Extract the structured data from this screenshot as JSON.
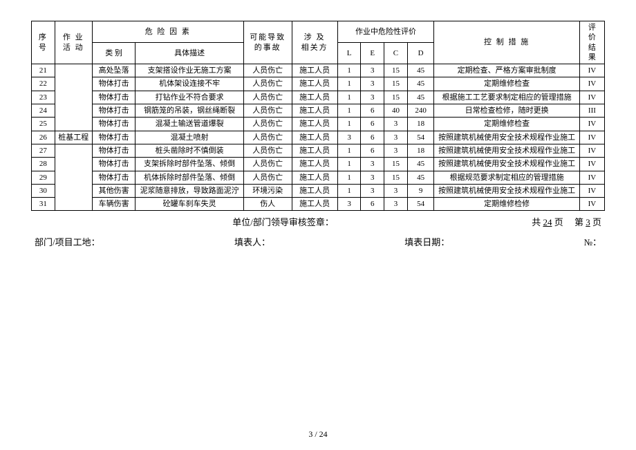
{
  "header": {
    "seq": "序\n号",
    "activity": "作 业\n活 动",
    "risk_factor": "危  险  因  素",
    "category": "类  别",
    "description": "具体描述",
    "accident": "可能导致\n的事故",
    "related": "涉  及\n相关方",
    "risk_eval": "作业中危险性评价",
    "L": "L",
    "E": "E",
    "C": "C",
    "D": "D",
    "controls": "控  制  措  施",
    "result": "评\n价\n结\n果"
  },
  "activity_merged": "桩基工程",
  "rows": [
    {
      "n": "21",
      "cat": "高处坠落",
      "desc": "支架搭设作业无施工方案",
      "acc": "人员伤亡",
      "rel": "施工人员",
      "L": "1",
      "E": "3",
      "C": "15",
      "D": "45",
      "ctrl": "定期检查、严格方案审批制度",
      "res": "IV"
    },
    {
      "n": "22",
      "cat": "物体打击",
      "desc": "机体架设连接不牢",
      "acc": "人员伤亡",
      "rel": "施工人员",
      "L": "1",
      "E": "3",
      "C": "15",
      "D": "45",
      "ctrl": "定期维修检查",
      "res": "IV"
    },
    {
      "n": "23",
      "cat": "物体打击",
      "desc": "打钻作业不符合要求",
      "acc": "人员伤亡",
      "rel": "施工人员",
      "L": "1",
      "E": "3",
      "C": "15",
      "D": "45",
      "ctrl": "根据施工工艺要求制定相应的管理措施",
      "res": "IV"
    },
    {
      "n": "24",
      "cat": "物体打击",
      "desc": "钢筋笼的吊装，钢丝绳断裂",
      "acc": "人员伤亡",
      "rel": "施工人员",
      "L": "1",
      "E": "6",
      "C": "40",
      "D": "240",
      "ctrl": "日常检查检修，随时更换",
      "res": "III"
    },
    {
      "n": "25",
      "cat": "物体打击",
      "desc": "混凝土输送管道爆裂",
      "acc": "人员伤亡",
      "rel": "施工人员",
      "L": "1",
      "E": "6",
      "C": "3",
      "D": "18",
      "ctrl": "定期维修检查",
      "res": "IV"
    },
    {
      "n": "26",
      "cat": "物体打击",
      "desc": "混凝土喷射",
      "acc": "人员伤亡",
      "rel": "施工人员",
      "L": "3",
      "E": "6",
      "C": "3",
      "D": "54",
      "ctrl": "按照建筑机械使用安全技术规程作业施工",
      "res": "IV"
    },
    {
      "n": "27",
      "cat": "物体打击",
      "desc": "桩头凿除时不慎倒装",
      "acc": "人员伤亡",
      "rel": "施工人员",
      "L": "1",
      "E": "6",
      "C": "3",
      "D": "18",
      "ctrl": "按照建筑机械使用安全技术规程作业施工",
      "res": "IV"
    },
    {
      "n": "28",
      "cat": "物体打击",
      "desc": "支架拆除时部件坠落、倾倒",
      "acc": "人员伤亡",
      "rel": "施工人员",
      "L": "1",
      "E": "3",
      "C": "15",
      "D": "45",
      "ctrl": "按照建筑机械使用安全技术规程作业施工",
      "res": "IV"
    },
    {
      "n": "29",
      "cat": "物体打击",
      "desc": "机体拆除时部件坠落、倾倒",
      "acc": "人员伤亡",
      "rel": "施工人员",
      "L": "1",
      "E": "3",
      "C": "15",
      "D": "45",
      "ctrl": "根据规范要求制定相应的管理措施",
      "res": "IV"
    },
    {
      "n": "30",
      "cat": "其他伤害",
      "desc": "泥浆随意排放，导致路面泥泞",
      "acc": "环境污染",
      "rel": "施工人员",
      "L": "1",
      "E": "3",
      "C": "3",
      "D": "9",
      "ctrl": "按照建筑机械使用安全技术规程作业施工",
      "res": "IV"
    },
    {
      "n": "31",
      "cat": "车辆伤害",
      "desc": "砼罐车刹车失灵",
      "acc": "伤人",
      "rel": "施工人员",
      "L": "3",
      "E": "6",
      "C": "3",
      "D": "54",
      "ctrl": "定期维修检修",
      "res": "IV"
    }
  ],
  "footer1": {
    "sign": "单位/部门领导审核签章：",
    "pages_a": "共 ",
    "pages_b": "24",
    "pages_c": " 页",
    "page_a": "第 ",
    "page_b": "3",
    "page_c": " 页"
  },
  "footer2": {
    "dept": "部门/项目工地：",
    "filler": "填表人：",
    "date": "填表日期：",
    "no": "№："
  },
  "pagenum": "3  /  24"
}
